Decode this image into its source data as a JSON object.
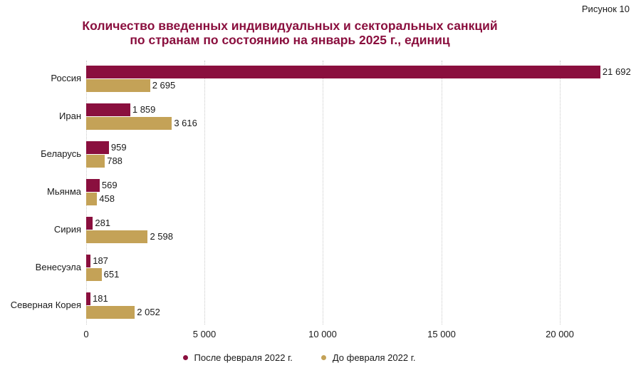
{
  "figure_label": "Рисунок 10",
  "title_line1": "Количество введенных индивидуальных и секторальных санкций",
  "title_line2": "по странам по состоянию на январь 2025 г., единиц",
  "colors": {
    "after": "#8a0f3e",
    "before": "#c4a257",
    "title": "#8a0f3e"
  },
  "legend": {
    "after": "После февраля 2022 г.",
    "before": "До февраля 2022 г."
  },
  "ticks": [
    "0",
    "5 000",
    "10 000",
    "15 000",
    "20 000"
  ],
  "rows": [
    {
      "country": "Россия",
      "after": "21 692",
      "before": "2 695"
    },
    {
      "country": "Иран",
      "after": "1 859",
      "before": "3 616"
    },
    {
      "country": "Беларусь",
      "after": "959",
      "before": "788"
    },
    {
      "country": "Мьянма",
      "after": "569",
      "before": "458"
    },
    {
      "country": "Сирия",
      "after": "281",
      "before": "2 598"
    },
    {
      "country": "Венесуэла",
      "after": "187",
      "before": "651"
    },
    {
      "country": "Северная Корея",
      "after": "181",
      "before": "2 052"
    }
  ],
  "chart_data": {
    "type": "bar",
    "orientation": "horizontal",
    "title": "Количество введенных индивидуальных и секторальных санкций по странам по состоянию на январь 2025 г., единиц",
    "categories": [
      "Россия",
      "Иран",
      "Беларусь",
      "Мьянма",
      "Сирия",
      "Венесуэла",
      "Северная Корея"
    ],
    "series": [
      {
        "name": "После февраля 2022 г.",
        "color": "#8a0f3e",
        "values": [
          21692,
          1859,
          959,
          569,
          281,
          187,
          181
        ]
      },
      {
        "name": "До февраля 2022 г.",
        "color": "#c4a257",
        "values": [
          2695,
          3616,
          788,
          458,
          2598,
          651,
          2052
        ]
      }
    ],
    "xlabel": "",
    "ylabel": "",
    "xlim": [
      0,
      22000
    ],
    "xticks": [
      0,
      5000,
      10000,
      15000,
      20000
    ],
    "grid": "vertical dotted",
    "legend_position": "bottom"
  }
}
